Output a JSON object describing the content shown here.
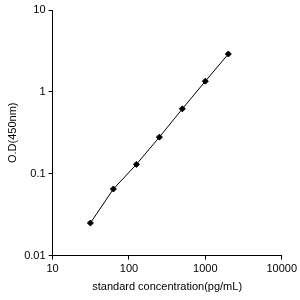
{
  "chart_data": {
    "type": "line",
    "x_label": "standard concentration(pg/mL)",
    "y_label": "O.D(450nm)",
    "x": [
      31.25,
      62.5,
      125,
      250,
      500,
      1000,
      2000
    ],
    "values": [
      0.025,
      0.065,
      0.13,
      0.28,
      0.62,
      1.35,
      2.9
    ],
    "color": "#000000",
    "marker": "diamond",
    "line_style": "solid",
    "log": true,
    "xlim": [
      10,
      10000
    ],
    "xticks": [
      10,
      100,
      1000,
      10000
    ],
    "ylim": [
      0.01,
      10
    ],
    "yticks": [
      0.01,
      0.1,
      1,
      10
    ],
    "grid": false
  }
}
